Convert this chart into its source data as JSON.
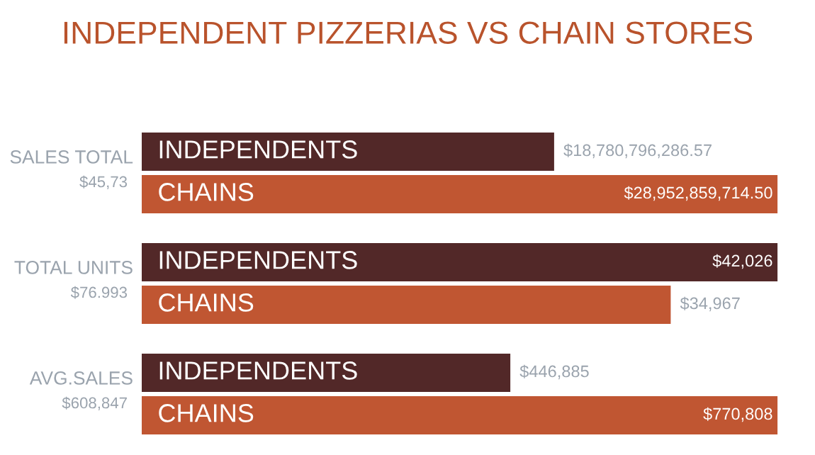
{
  "chart_data": [
    {
      "type": "bar",
      "orientation": "horizontal",
      "title": "INDEPENDENT PIZZERIAS VS CHAIN STORES",
      "ylabel": "SALES TOTAL",
      "annotations": [
        "$45,73"
      ],
      "categories": [
        "INDEPENDENTS",
        "CHAINS"
      ],
      "values": [
        18780796286.57,
        28952859714.5
      ],
      "colors": [
        "#522828",
        "#c05632"
      ],
      "value_labels": [
        "$18,780,796,286.57",
        "$28,952,859,714.50"
      ]
    },
    {
      "type": "bar",
      "orientation": "horizontal",
      "ylabel": "TOTAL UNITS",
      "annotations": [
        "$76.993"
      ],
      "categories": [
        "INDEPENDENTS",
        "CHAINS"
      ],
      "values": [
        42026,
        34967
      ],
      "colors": [
        "#522828",
        "#c05632"
      ],
      "value_labels": [
        "$42,026",
        "$34,967"
      ]
    },
    {
      "type": "bar",
      "orientation": "horizontal",
      "ylabel": "AVG.SALES",
      "annotations": [
        "$608,847"
      ],
      "categories": [
        "INDEPENDENTS",
        "CHAINS"
      ],
      "values": [
        446885,
        770808
      ],
      "colors": [
        "#522828",
        "#c05632"
      ],
      "value_labels": [
        "$446,885",
        "$770,808"
      ]
    }
  ]
}
